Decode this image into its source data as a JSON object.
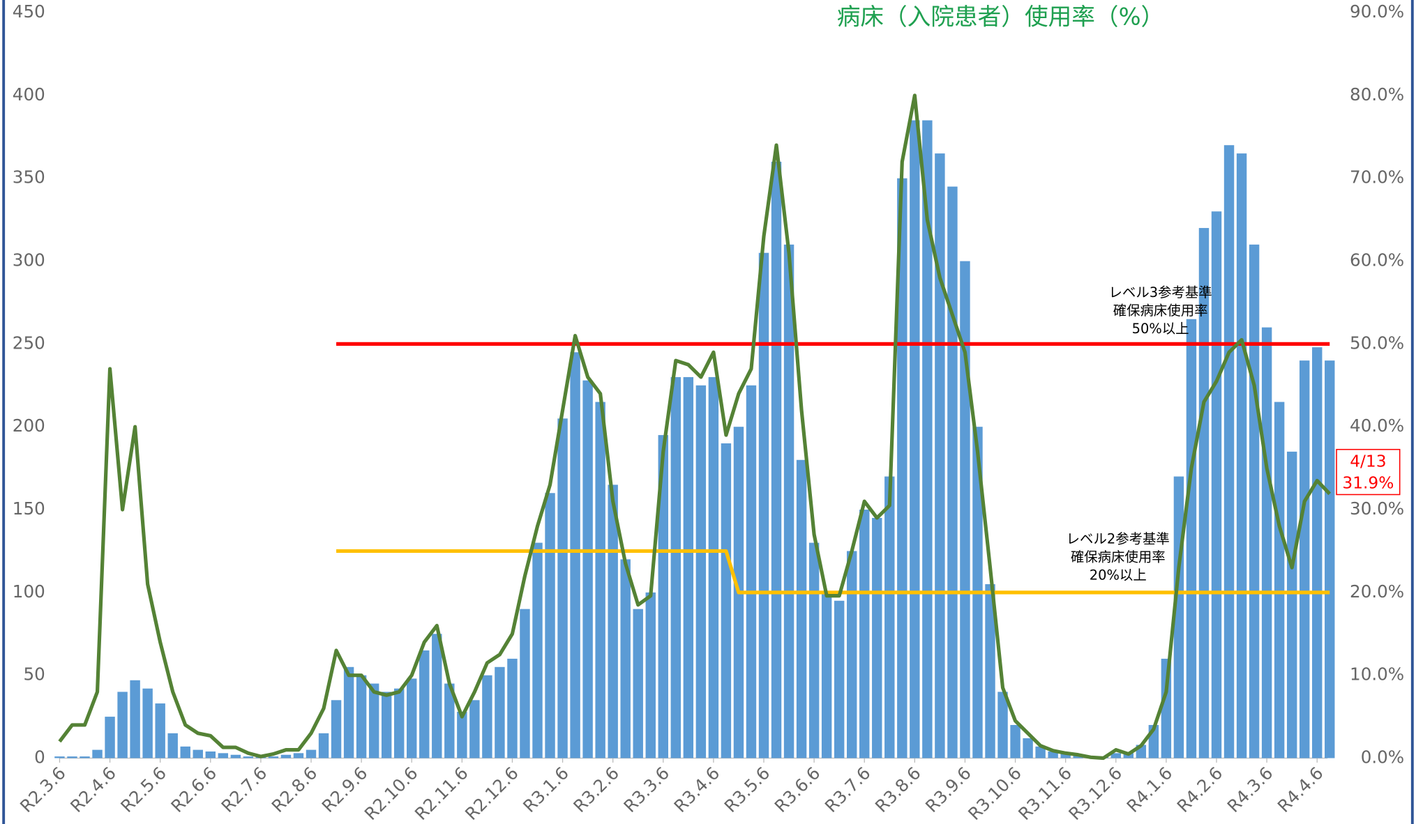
{
  "chart_data": {
    "type": "combo",
    "title": "病床（入院患者）使用率（%）",
    "categories": [
      "R2.3.6",
      null,
      null,
      null,
      "R2.4.6",
      null,
      null,
      null,
      "R2.5.6",
      null,
      null,
      null,
      "R2.6.6",
      null,
      null,
      null,
      "R2.7.6",
      null,
      null,
      null,
      "R2.8.6",
      null,
      null,
      null,
      "R2.9.6",
      null,
      null,
      null,
      "R2.10.6",
      null,
      null,
      null,
      "R2.11.6",
      null,
      null,
      null,
      "R2.12.6",
      null,
      null,
      null,
      "R3.1.6",
      null,
      null,
      null,
      "R3.2.6",
      null,
      null,
      null,
      "R3.3.6",
      null,
      null,
      null,
      "R3.4.6",
      null,
      null,
      null,
      "R3.5.6",
      null,
      null,
      null,
      "R3.6.6",
      null,
      null,
      null,
      "R3.7.6",
      null,
      null,
      null,
      "R3.8.6",
      null,
      null,
      null,
      "R3.9.6",
      null,
      null,
      null,
      "R3.10.6",
      null,
      null,
      null,
      "R3.11.6",
      null,
      null,
      null,
      "R3.12.6",
      null,
      null,
      null,
      "R4.1.6",
      null,
      null,
      null,
      "R4.2.6",
      null,
      null,
      null,
      "R4.3.6",
      null,
      null,
      null,
      "R4.4.6",
      null
    ],
    "series": [
      {
        "type": "bar",
        "color": "#5b9bd5",
        "values": [
          1,
          1,
          1,
          5,
          25,
          40,
          47,
          42,
          33,
          15,
          7,
          5,
          4,
          3,
          2,
          1,
          1,
          1,
          2,
          3,
          5,
          15,
          35,
          55,
          50,
          45,
          40,
          42,
          48,
          65,
          75,
          45,
          28,
          35,
          50,
          55,
          60,
          90,
          130,
          160,
          205,
          245,
          228,
          215,
          165,
          120,
          90,
          100,
          195,
          230,
          230,
          225,
          230,
          190,
          200,
          225,
          305,
          360,
          310,
          180,
          130,
          100,
          95,
          125,
          150,
          145,
          170,
          350,
          385,
          385,
          365,
          345,
          300,
          200,
          105,
          40,
          20,
          12,
          7,
          4,
          3,
          2,
          1,
          1,
          3,
          3,
          8,
          20,
          60,
          170,
          265,
          320,
          330,
          370,
          365,
          310,
          260,
          215,
          185,
          240,
          248,
          240
        ]
      },
      {
        "type": "line",
        "axis": "y2",
        "color": "#548235",
        "values": [
          2,
          4,
          4,
          8,
          47,
          30,
          40,
          21,
          14,
          8,
          4,
          3,
          2.7,
          1.3,
          1.3,
          0.6,
          0.2,
          0.5,
          1,
          1,
          3,
          6,
          13,
          10,
          10,
          8,
          7.6,
          8,
          10,
          14,
          16,
          9,
          5,
          8,
          11.5,
          12.5,
          15,
          22,
          28,
          33,
          42,
          51,
          46,
          44,
          31,
          23.5,
          18.5,
          19.6,
          37,
          48,
          47.5,
          46,
          49,
          39,
          44,
          47,
          63,
          74,
          61,
          42,
          27,
          19.6,
          19.6,
          25,
          31,
          29,
          30.5,
          72,
          80,
          65,
          58,
          53.5,
          49,
          37,
          23,
          8.5,
          4.5,
          3,
          1.5,
          0.9,
          0.6,
          0.4,
          0.1,
          0,
          1,
          0.5,
          1.5,
          3.5,
          8,
          23,
          35,
          43,
          45.5,
          49,
          50.5,
          45,
          35,
          28,
          23,
          31,
          33.5,
          31.9
        ]
      },
      {
        "type": "line",
        "axis": "y2",
        "color": "#ff0000",
        "values": [
          null,
          null,
          null,
          null,
          null,
          null,
          null,
          null,
          null,
          null,
          null,
          null,
          null,
          null,
          null,
          null,
          null,
          null,
          null,
          null,
          null,
          null,
          50,
          50,
          50,
          50,
          50,
          50,
          50,
          50,
          50,
          50,
          50,
          50,
          50,
          50,
          50,
          50,
          50,
          50,
          50,
          50,
          50,
          50,
          50,
          50,
          50,
          50,
          50,
          50,
          50,
          50,
          50,
          50,
          50,
          50,
          50,
          50,
          50,
          50,
          50,
          50,
          50,
          50,
          50,
          50,
          50,
          50,
          50,
          50,
          50,
          50,
          50,
          50,
          50,
          50,
          50,
          50,
          50,
          50,
          50,
          50,
          50,
          50,
          50,
          50,
          50,
          50,
          50,
          50,
          50,
          50,
          50,
          50,
          50,
          50,
          50,
          50,
          50,
          50,
          50,
          50
        ]
      },
      {
        "type": "line",
        "axis": "y2",
        "color": "#ffc000",
        "values": [
          null,
          null,
          null,
          null,
          null,
          null,
          null,
          null,
          null,
          null,
          null,
          null,
          null,
          null,
          null,
          null,
          null,
          null,
          null,
          null,
          null,
          null,
          25,
          25,
          25,
          25,
          25,
          25,
          25,
          25,
          25,
          25,
          25,
          25,
          25,
          25,
          25,
          25,
          25,
          25,
          25,
          25,
          25,
          25,
          25,
          25,
          25,
          25,
          25,
          25,
          25,
          25,
          25,
          25,
          20,
          20,
          20,
          20,
          20,
          20,
          20,
          20,
          20,
          20,
          20,
          20,
          20,
          20,
          20,
          20,
          20,
          20,
          20,
          20,
          20,
          20,
          20,
          20,
          20,
          20,
          20,
          20,
          20,
          20,
          20,
          20,
          20,
          20,
          20,
          20,
          20,
          20,
          20,
          20,
          20,
          20,
          20,
          20,
          20,
          20,
          20,
          20
        ]
      }
    ],
    "ylim": [
      0,
      450
    ],
    "yticks": [
      0,
      50,
      100,
      150,
      200,
      250,
      300,
      350,
      400,
      450
    ],
    "y2lim": [
      0,
      90
    ],
    "y2ticks": [
      {
        "value": 0,
        "label": "0.0%"
      },
      {
        "value": 10,
        "label": "10.0%"
      },
      {
        "value": 20,
        "label": "20.0%"
      },
      {
        "value": 30,
        "label": "30.0%"
      },
      {
        "value": 40,
        "label": "40.0%"
      },
      {
        "value": 50,
        "label": "50.0%"
      },
      {
        "value": 60,
        "label": "60.0%"
      },
      {
        "value": 70,
        "label": "70.0%"
      },
      {
        "value": 80,
        "label": "80.0%"
      },
      {
        "value": 90,
        "label": "90.0%"
      }
    ],
    "annotations": [
      {
        "lines": [
          "レベル3参考基準",
          "確保病床使用率",
          "50%以上"
        ]
      },
      {
        "lines": [
          "レベル2参考基準",
          "確保病床使用率",
          "20%以上"
        ]
      }
    ],
    "callout": {
      "date": "4/13",
      "value": 31.9,
      "label": "31.9%"
    }
  }
}
